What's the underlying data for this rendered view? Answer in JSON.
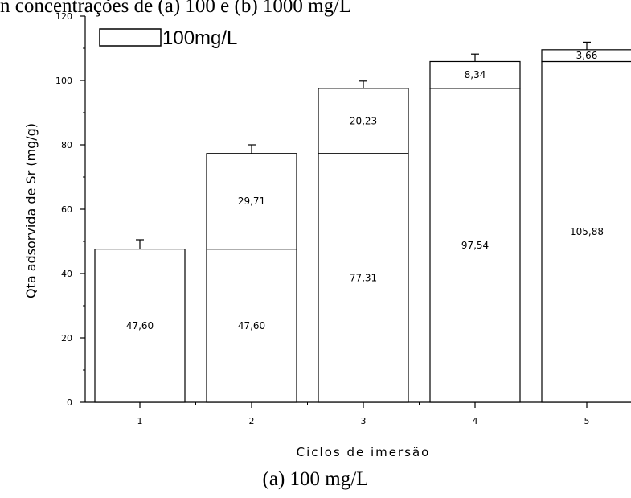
{
  "header_text": "n concentrações de (a) 100 e (b) 1000 mg/L",
  "caption": "(a)  100 mg/L",
  "chart_data": {
    "type": "bar",
    "stacked": true,
    "categories": [
      "1",
      "2",
      "3",
      "4",
      "5"
    ],
    "segments": [
      [
        47.6
      ],
      [
        47.6,
        29.71
      ],
      [
        77.31,
        20.23
      ],
      [
        97.54,
        8.34
      ],
      [
        105.88,
        3.66
      ]
    ],
    "segment_labels": [
      [
        "47,60"
      ],
      [
        "47,60",
        "29,71"
      ],
      [
        "77,31",
        "20,23"
      ],
      [
        "97,54",
        "8,34"
      ],
      [
        "105,88",
        "3,66"
      ]
    ],
    "error_tops": [
      50.5,
      80,
      99.8,
      108.2,
      111.9
    ],
    "ylim": [
      0,
      120
    ],
    "yticks": [
      "0",
      "20",
      "40",
      "60",
      "80",
      "100",
      "120"
    ],
    "xlabel": "Ciclos de imersão",
    "ylabel": "Qta adsorvida de Sr (mg/g)",
    "legend": {
      "label": "100mg/L",
      "position": "top-left"
    }
  }
}
